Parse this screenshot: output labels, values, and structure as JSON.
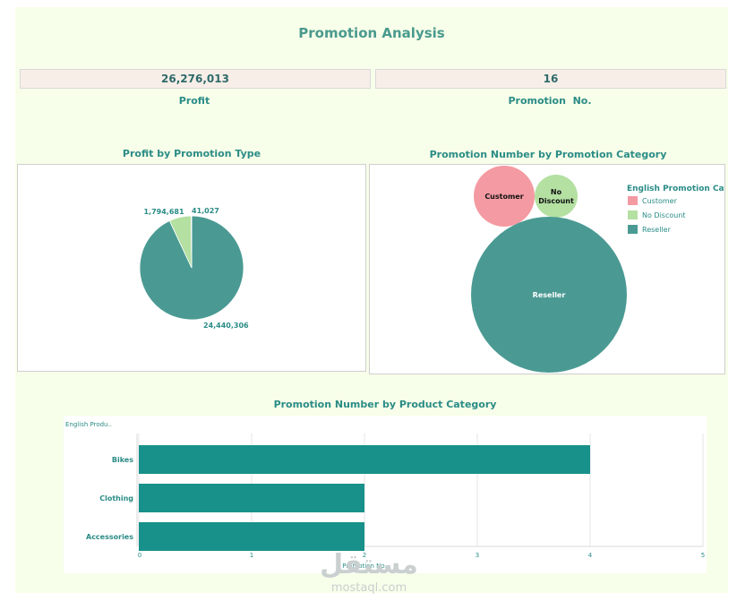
{
  "dashboard": {
    "title": "Promotion Analysis"
  },
  "kpis": [
    {
      "value": "26,276,013",
      "label": "Profit"
    },
    {
      "value": "16",
      "label": "Promotion  No."
    }
  ],
  "charts": {
    "pie_title": "Profit by Promotion Type",
    "bubble_title": "Promotion Number by Promotion Category",
    "bar_title": "Promotion Number by Product Category"
  },
  "chart_data": [
    {
      "type": "pie",
      "title": "Profit by Promotion Type",
      "slices": [
        {
          "value": 24440306,
          "label": "24,440,306",
          "color": "#4a9a93"
        },
        {
          "value": 1794681,
          "label": "1,794,681",
          "color": "#b4e0a2"
        },
        {
          "value": 41027,
          "label": "41,027",
          "color": "#f49aa2"
        }
      ]
    },
    {
      "type": "bubble",
      "title": "Promotion Number by Promotion Category",
      "legend_title": "English Promotion Cat..",
      "legend_position": "top-right",
      "bubbles": [
        {
          "name": "Customer",
          "value": 2,
          "color": "#f49aa2"
        },
        {
          "name": "No Discount",
          "value": 1,
          "color": "#b4e0a2"
        },
        {
          "name": "Reseller",
          "value": 13,
          "color": "#4a9a93"
        }
      ]
    },
    {
      "type": "bar",
      "orientation": "horizontal",
      "title": "Promotion Number by Product Category",
      "row_header": "English Produ..",
      "categories": [
        "Bikes",
        "Clothing",
        "Accessories"
      ],
      "values": [
        4,
        2,
        2
      ],
      "xlabel": "Promotion No.",
      "xlim": [
        0,
        5
      ],
      "xticks": [
        0,
        1,
        2,
        3,
        4,
        5
      ],
      "grid": true,
      "color": "#17918a"
    }
  ],
  "watermark": {
    "main": "مستقل",
    "sub": "mostaql.com"
  }
}
